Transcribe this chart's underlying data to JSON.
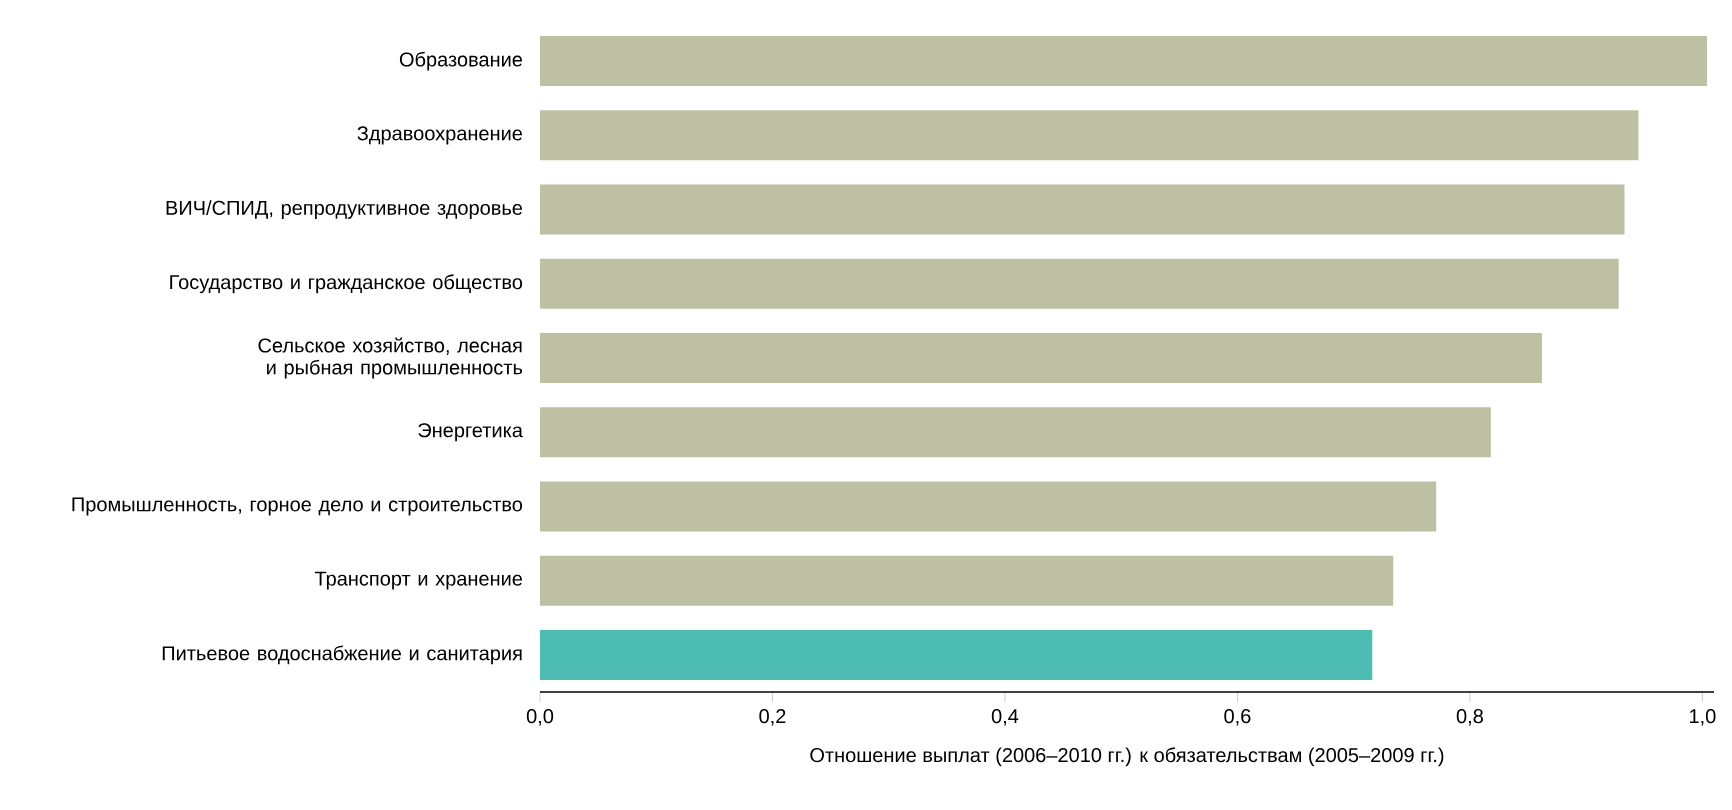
{
  "chart_data": {
    "type": "bar",
    "orientation": "horizontal",
    "xlabel": "Отношение выплат (2006–2010 гг.) к обязательствам   (2005–2009 гг.)",
    "categories": [
      "Образование",
      "Здравоохранение",
      "ВИЧ/СПИД, репродуктивное здоровье",
      "Государство и гражданское общество",
      "Сельское хозяйство, лесная и рыбная промышленность",
      "Энергетика",
      "Промышленность, горное дело и строительство",
      "Транспорт и хранение",
      "Питьевое водоснабжение и санитария"
    ],
    "values": [
      1.004,
      0.945,
      0.933,
      0.928,
      0.862,
      0.818,
      0.771,
      0.734,
      0.716
    ],
    "colors": [
      "#bec0a4",
      "#bec0a4",
      "#bec0a4",
      "#bec0a4",
      "#bec0a4",
      "#bec0a4",
      "#bec0a4",
      "#bec0a4",
      "#4dbcb3"
    ],
    "xlim": [
      0,
      1.01
    ],
    "xticks": [
      {
        "value": 0,
        "label": "0,0"
      },
      {
        "value": 0.2,
        "label": "0,2"
      },
      {
        "value": 0.4,
        "label": "0,4"
      },
      {
        "value": 0.6,
        "label": "0,6"
      },
      {
        "value": 0.8,
        "label": "0,8"
      },
      {
        "value": 1.0,
        "label": "1,0"
      }
    ],
    "grid": false
  }
}
